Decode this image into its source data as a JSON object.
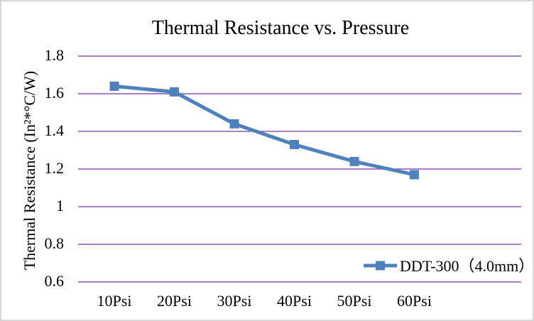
{
  "window": {
    "background": "#ffffff",
    "border_color": "#d8d8d8"
  },
  "chart_data": {
    "type": "line",
    "title": "Thermal Resistance vs. Pressure",
    "categories": [
      "10Psi",
      "20Psi",
      "30Psi",
      "40Psi",
      "50Psi",
      "60Psi"
    ],
    "series": [
      {
        "name": "DDT-300（4.0mm）",
        "marker": "square",
        "color": "#4f81bd",
        "values": [
          1.64,
          1.61,
          1.44,
          1.33,
          1.24,
          1.17
        ]
      }
    ],
    "xlabel": "",
    "ylabel": "Thermal Resistance (In²*°C/W)",
    "ylim": [
      0.6,
      1.8
    ],
    "yticks": [
      1.8,
      1.6,
      1.4,
      1.2,
      1.0,
      0.8,
      0.6
    ],
    "ytick_labels": [
      "1.8",
      "1.6",
      "1.4",
      "1.2",
      "1",
      "0.8",
      "0.6"
    ],
    "grid": {
      "horizontal": true,
      "vertical": false,
      "color": "#7233a5"
    },
    "legend": {
      "position": "inside-bottom-right"
    },
    "text_color": "#000000"
  }
}
